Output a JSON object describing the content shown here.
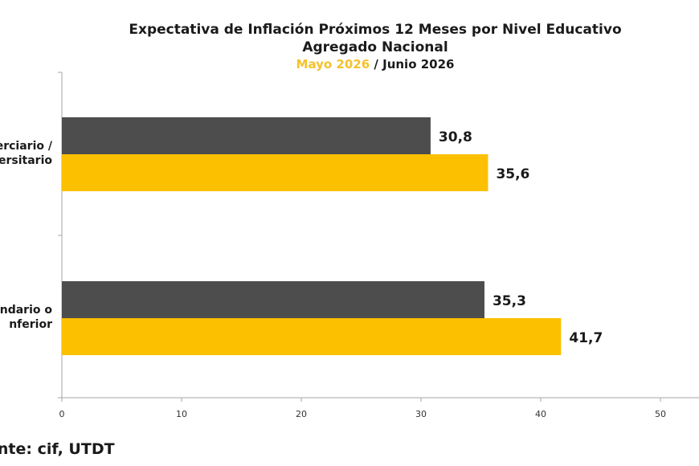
{
  "chart_data": {
    "type": "bar",
    "orientation": "horizontal",
    "title": "Expectativa de Inflación Próximos 12 Meses por Nivel Educativo",
    "subtitle": "Agregado Nacional",
    "period_a": "Mayo 2026",
    "separator": "/",
    "period_b": "Junio 2026",
    "categories": [
      "Terciario / Universitario",
      "Secundario o Inferior"
    ],
    "category_lines": [
      [
        "erciario /",
        "iversitario"
      ],
      [
        "undario o",
        "nferior"
      ]
    ],
    "series": [
      {
        "values": [
          30.8,
          35.3
        ],
        "labels": [
          "30,8",
          "35,3"
        ],
        "color": "#4d4d4d"
      },
      {
        "values": [
          35.6,
          41.7
        ],
        "labels": [
          "35,6",
          "41,7"
        ],
        "color": "#fcc000"
      }
    ],
    "xlim": [
      0,
      50
    ],
    "xticks": [
      "0",
      "10",
      "20",
      "30",
      "40",
      "50"
    ],
    "grid": false,
    "legend": "none"
  },
  "source": "ente: cif, UTDT",
  "colors": {
    "period_a": "#f4c22d",
    "period_b": "#1a1a1a"
  }
}
